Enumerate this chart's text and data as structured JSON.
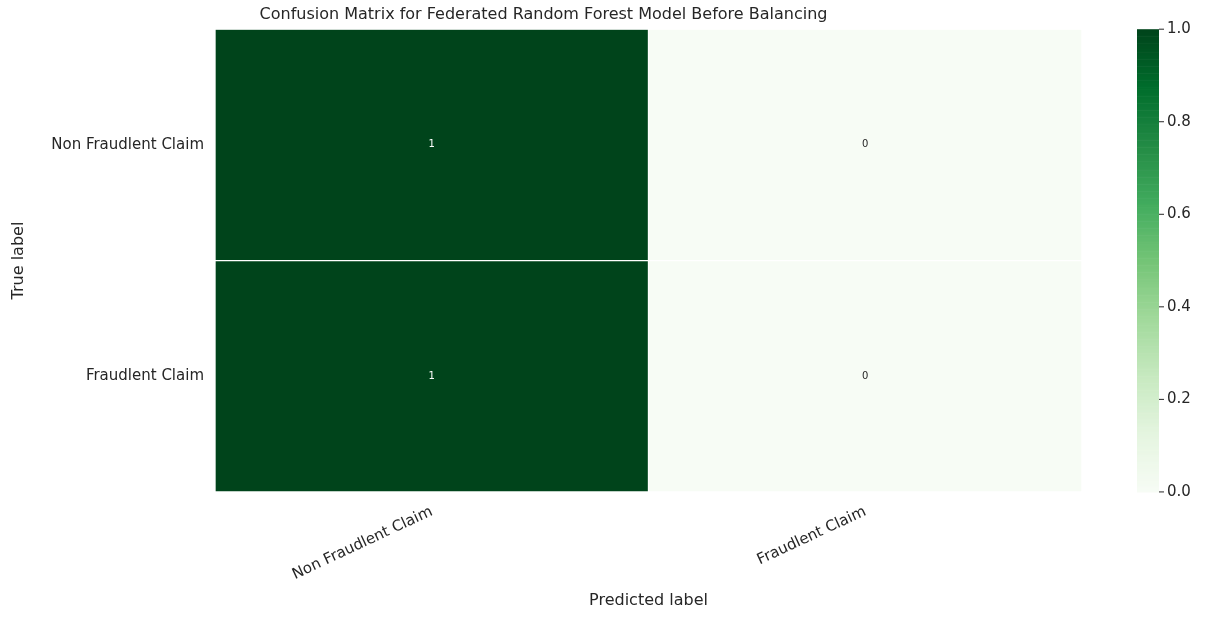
{
  "chart_data": {
    "type": "heatmap",
    "title": "Confusion Matrix for Federated Random Forest Model Before Balancing",
    "xlabel": "Predicted label",
    "ylabel": "True label",
    "categories": [
      "Non Fraudlent Claim",
      "Fraudlent Claim"
    ],
    "y_categories": [
      "Non Fraudlent Claim",
      "Fraudlent Claim"
    ],
    "cells": [
      [
        1,
        0
      ],
      [
        1,
        0
      ]
    ],
    "data_labels": true,
    "clim": [
      0,
      1
    ],
    "cticks": [
      {
        "value": 0,
        "label": "0.0"
      },
      {
        "value": 0.2,
        "label": "0.2"
      },
      {
        "value": 0.4,
        "label": "0.4"
      },
      {
        "value": 0.6,
        "label": "0.6"
      },
      {
        "value": 0.8,
        "label": "0.8"
      },
      {
        "value": 1,
        "label": "1.0"
      }
    ]
  }
}
